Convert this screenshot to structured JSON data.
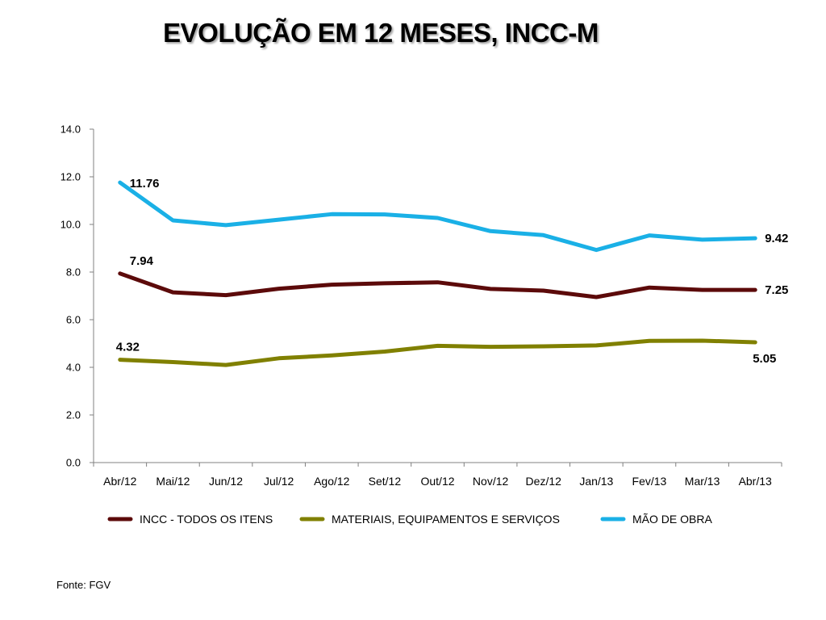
{
  "title": "EVOLUÇÃO EM 12 MESES, INCC-M",
  "source": "Fonte: FGV",
  "chart_data": {
    "type": "line",
    "categories": [
      "Abr/12",
      "Mai/12",
      "Jun/12",
      "Jul/12",
      "Ago/12",
      "Set/12",
      "Out/12",
      "Nov/12",
      "Dez/12",
      "Jan/13",
      "Fev/13",
      "Mar/13",
      "Abr/13"
    ],
    "ylim": [
      0,
      14
    ],
    "yticks": [
      0,
      2,
      4,
      6,
      8,
      10,
      12,
      14
    ],
    "ytick_labels": [
      "0.0",
      "2.0",
      "4.0",
      "6.0",
      "8.0",
      "10.0",
      "12.0",
      "14.0"
    ],
    "grid": false,
    "legend_position": "bottom",
    "series": [
      {
        "name": "INCC - TODOS OS ITENS",
        "color": "#5c0a0a",
        "values": [
          7.94,
          7.15,
          7.03,
          7.3,
          7.47,
          7.53,
          7.57,
          7.29,
          7.22,
          6.95,
          7.35,
          7.25,
          7.25
        ],
        "first_label": "7.94",
        "last_label": "7.25"
      },
      {
        "name": "MATERIAIS,  EQUIPAMENTOS E SERVIÇOS",
        "color": "#808000",
        "values": [
          4.32,
          4.22,
          4.1,
          4.38,
          4.5,
          4.66,
          4.9,
          4.86,
          4.88,
          4.92,
          5.11,
          5.12,
          5.05
        ],
        "first_label": "4.32",
        "last_label": "5.05"
      },
      {
        "name": "MÃO DE OBRA",
        "color": "#1ab0e6",
        "values": [
          11.76,
          10.17,
          9.97,
          10.2,
          10.43,
          10.42,
          10.27,
          9.72,
          9.55,
          8.93,
          9.54,
          9.36,
          9.42
        ],
        "first_label": "11.76",
        "last_label": "9.42"
      }
    ]
  }
}
